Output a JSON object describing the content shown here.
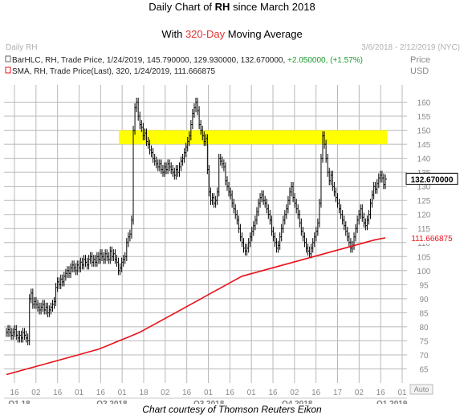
{
  "title": {
    "line1_pre": "Daily Chart of ",
    "line1_ticker": "RH",
    "line1_post": " since March 2018",
    "line2_pre": "With ",
    "line2_highlight": "320-Day",
    "line2_post": " Moving Average"
  },
  "header": {
    "left": "Daily RH",
    "right": "3/6/2018 - 2/12/2019 (NYC)",
    "legend1": "BarHLC, RH, Trade Price, 1/24/2019, 145.790000, 129.930000, 132.670000, ",
    "legend1_change": "+2.050000, (+1.57%)",
    "legend2": "SMA, RH, Trade Price(Last), 320, 1/24/2019, 111.666875",
    "price_label": "Price",
    "currency_label": "USD",
    "auto_label": "Auto"
  },
  "caption": "Chart courtesy of Thomson Reuters Eikon",
  "colors": {
    "bars": "#000000",
    "sma": "#e8101a",
    "highlight": "#ffff00",
    "grid": "#b8b8b8",
    "axis_text": "#8a8a8a",
    "last_price_bg": "#ffffff",
    "sma_label_text": "#e8101a"
  },
  "chart_data": {
    "type": "line",
    "ylim": [
      60,
      165
    ],
    "yticks": [
      65,
      70,
      75,
      80,
      85,
      90,
      95,
      100,
      105,
      110,
      115,
      120,
      125,
      130,
      135,
      140,
      145,
      150,
      155,
      160
    ],
    "highlight_band": [
      145,
      150
    ],
    "last_price_label": "132.670000",
    "sma_label": "111.666875",
    "xticks_minor": [
      "16",
      "02",
      "16",
      "01",
      "16",
      "01",
      "18",
      "02",
      "16",
      "01",
      "16",
      "01",
      "16",
      "02",
      "16",
      "17",
      "02",
      "16",
      "01"
    ],
    "xticks_major": [
      "Q1 18",
      "Q2 2018",
      "Q3 2018",
      "Q4 2018",
      "Q1 2019"
    ],
    "series": [
      {
        "name": "BarHLC",
        "type": "ohlc_close",
        "values": [
          78,
          79,
          78,
          77,
          78,
          79,
          77,
          76,
          77,
          76,
          78,
          77,
          76,
          75,
          90,
          92,
          88,
          89,
          88,
          87,
          86,
          87,
          88,
          86,
          87,
          85,
          86,
          87,
          88,
          89,
          94,
          96,
          95,
          97,
          96,
          98,
          99,
          100,
          99,
          101,
          102,
          101,
          100,
          102,
          101,
          103,
          102,
          104,
          103,
          102,
          104,
          105,
          103,
          104,
          103,
          105,
          104,
          106,
          105,
          104,
          106,
          105,
          104,
          107,
          105,
          106,
          104,
          103,
          100,
          101,
          103,
          104,
          105,
          110,
          112,
          113,
          118,
          150,
          158,
          160,
          155,
          152,
          151,
          148,
          149,
          146,
          145,
          143,
          142,
          140,
          139,
          138,
          137,
          138,
          136,
          135,
          137,
          136,
          138,
          137,
          136,
          135,
          134,
          136,
          135,
          137,
          139,
          140,
          142,
          144,
          146,
          148,
          152,
          156,
          158,
          160,
          157,
          152,
          150,
          148,
          146,
          147,
          136,
          128,
          125,
          126,
          124,
          125,
          128,
          140,
          139,
          138,
          137,
          132,
          130,
          128,
          127,
          124,
          122,
          120,
          118,
          115,
          112,
          110,
          108,
          107,
          108,
          110,
          112,
          114,
          116,
          118,
          121,
          124,
          126,
          127,
          125,
          124,
          122,
          120,
          118,
          114,
          112,
          110,
          108,
          109,
          112,
          115,
          118,
          120,
          122,
          125,
          128,
          130,
          126,
          124,
          122,
          120,
          117,
          114,
          112,
          110,
          108,
          107,
          106,
          108,
          110,
          112,
          114,
          117,
          124,
          140,
          148,
          145,
          140,
          135,
          132,
          134,
          130,
          128,
          126,
          124,
          122,
          120,
          118,
          116,
          114,
          112,
          110,
          108,
          109,
          112,
          115,
          118,
          120,
          122,
          119,
          117,
          116,
          118,
          120,
          124,
          127,
          130,
          129,
          131,
          133,
          134,
          133,
          130.6,
          132.67
        ],
        "note_first_date": "2018-03-06"
      },
      {
        "name": "SMA 320",
        "values": [
          63,
          64,
          65,
          66,
          67,
          68,
          69,
          70,
          71,
          72,
          73.5,
          75,
          76.5,
          78,
          80,
          82,
          84,
          86,
          88,
          90,
          92,
          94,
          96,
          98,
          99,
          100,
          101,
          102,
          103,
          104,
          105,
          106,
          107,
          108,
          109,
          110,
          111,
          111.67
        ]
      }
    ]
  }
}
